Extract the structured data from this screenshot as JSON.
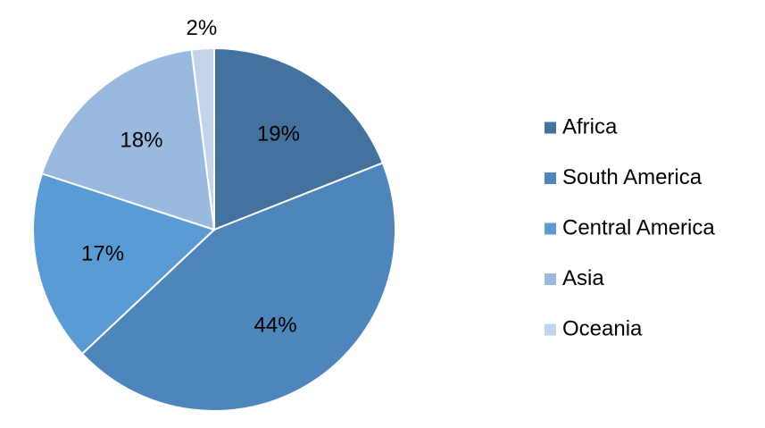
{
  "chart_data": {
    "type": "pie",
    "title": "",
    "legend_position": "right",
    "slices": [
      {
        "label": "Africa",
        "value": 19,
        "value_label": "19%",
        "color": "#44729F"
      },
      {
        "label": "South America",
        "value": 44,
        "value_label": "44%",
        "color": "#4E85BA"
      },
      {
        "label": "Central America",
        "value": 17,
        "value_label": "17%",
        "color": "#5B9BD5"
      },
      {
        "label": "Asia",
        "value": 18,
        "value_label": "18%",
        "color": "#9AB9DF"
      },
      {
        "label": "Oceania",
        "value": 2,
        "value_label": "2%",
        "color": "#C3D5EB"
      }
    ]
  }
}
